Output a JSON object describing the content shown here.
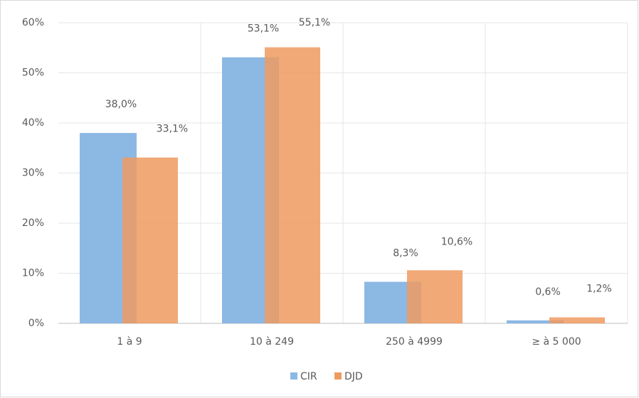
{
  "chart_data": {
    "type": "bar",
    "categories": [
      "1 à 9",
      "10 à 249",
      "250 à 4999",
      "≥ à 5 000"
    ],
    "series": [
      {
        "name": "CIR",
        "color": "#8cb8e4",
        "values": [
          38.0,
          53.1,
          8.3,
          0.6
        ],
        "value_labels": [
          "38,0%",
          "53,1%",
          "8,3%",
          "0,6%"
        ]
      },
      {
        "name": "DJD",
        "color": "#ef9a60",
        "values": [
          33.1,
          55.1,
          10.6,
          1.2
        ],
        "value_labels": [
          "33,1%",
          "55,1%",
          "10,6%",
          "1,2%"
        ]
      }
    ],
    "ylim": [
      0,
      60
    ],
    "yticks": [
      {
        "value": 0,
        "label": "0%"
      },
      {
        "value": 10,
        "label": "10%"
      },
      {
        "value": 20,
        "label": "20%"
      },
      {
        "value": 30,
        "label": "30%"
      },
      {
        "value": 40,
        "label": "40%"
      },
      {
        "value": 50,
        "label": "50%"
      },
      {
        "value": 60,
        "label": "60%"
      }
    ],
    "grid": true,
    "legend": "bottom"
  }
}
